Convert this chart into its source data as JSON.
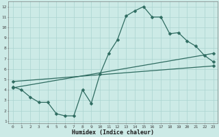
{
  "xlabel": "Humidex (Indice chaleur)",
  "xlim": [
    -0.5,
    23.5
  ],
  "ylim": [
    0.8,
    12.5
  ],
  "yticks": [
    1,
    2,
    3,
    4,
    5,
    6,
    7,
    8,
    9,
    10,
    11,
    12
  ],
  "xticks": [
    0,
    1,
    2,
    3,
    4,
    5,
    6,
    7,
    8,
    9,
    10,
    11,
    12,
    13,
    14,
    15,
    16,
    17,
    18,
    19,
    20,
    21,
    22,
    23
  ],
  "background_color": "#cceae6",
  "grid_color": "#aad4d0",
  "line_color": "#2e6b60",
  "line1_x": [
    0,
    1,
    2,
    3,
    4,
    5,
    6,
    7,
    8,
    9,
    10,
    11,
    12,
    13,
    14,
    15,
    16,
    17,
    18,
    19,
    20,
    21,
    22,
    23
  ],
  "line1_y": [
    4.3,
    4.0,
    3.3,
    2.8,
    2.8,
    1.7,
    1.5,
    1.5,
    4.0,
    2.7,
    5.5,
    7.5,
    8.8,
    11.1,
    11.6,
    12.0,
    11.0,
    11.0,
    9.4,
    9.5,
    8.7,
    8.2,
    7.3,
    6.7
  ],
  "line2_x": [
    0,
    23
  ],
  "line2_y": [
    4.2,
    7.5
  ],
  "line3_x": [
    0,
    23
  ],
  "line3_y": [
    4.8,
    6.3
  ],
  "markersize": 2.5,
  "linewidth": 0.9
}
